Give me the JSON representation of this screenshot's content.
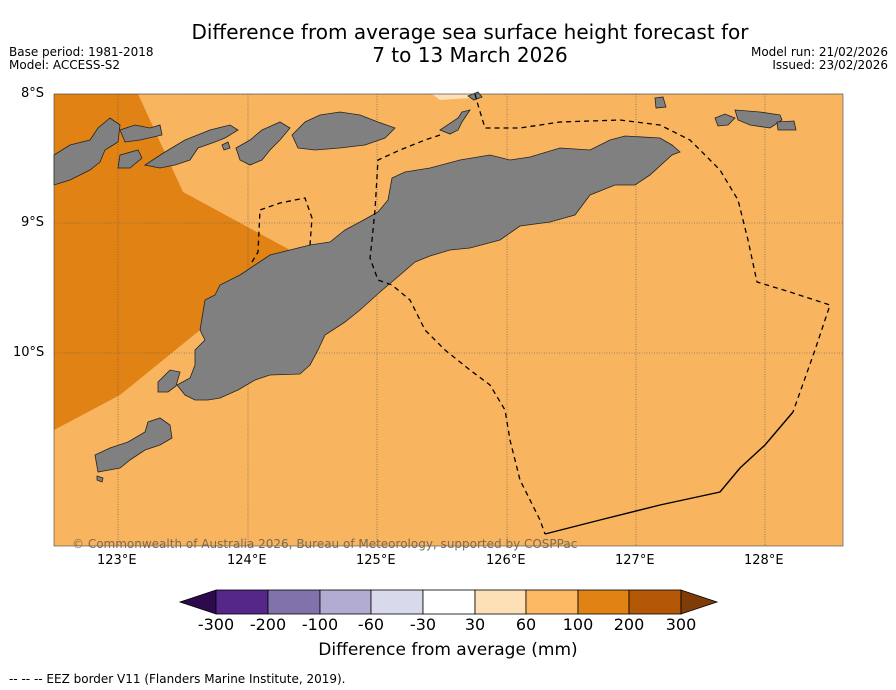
{
  "title_line1": "Difference from average sea surface height forecast for",
  "title_line2": "7 to 13 March 2026",
  "base_period": "Base period: 1981-2018",
  "model": "Model: ACCESS-S2",
  "model_run": "Model run: 21/02/2026",
  "issued": "Issued: 23/02/2026",
  "lat_labels": [
    "8°S",
    "9°S",
    "10°S"
  ],
  "lon_labels": [
    "123°E",
    "124°E",
    "125°E",
    "126°E",
    "127°E",
    "128°E"
  ],
  "copyright": "© Commonwealth of Australia 2026, Bureau of Meteorology, supported by COSPPac",
  "colorbar": {
    "ticks": [
      "-300",
      "-200",
      "-100",
      "-60",
      "-30",
      "30",
      "60",
      "100",
      "200",
      "300"
    ],
    "colors": [
      "#2d0a4e",
      "#542788",
      "#8073ac",
      "#b2abd2",
      "#d8daeb",
      "#ffffff",
      "#fee0b6",
      "#fdb863",
      "#e08214",
      "#b35806",
      "#7f3b08"
    ],
    "title": "Difference from average (mm)"
  },
  "legend_text": "--  --  -- EEZ border V11 (Flanders Marine Institute, 2019).",
  "colors": {
    "land": "#808080",
    "sea_60_100": "#f9b45f",
    "sea_100_200": "#e08214",
    "sea_30_60": "#fee0b6"
  }
}
